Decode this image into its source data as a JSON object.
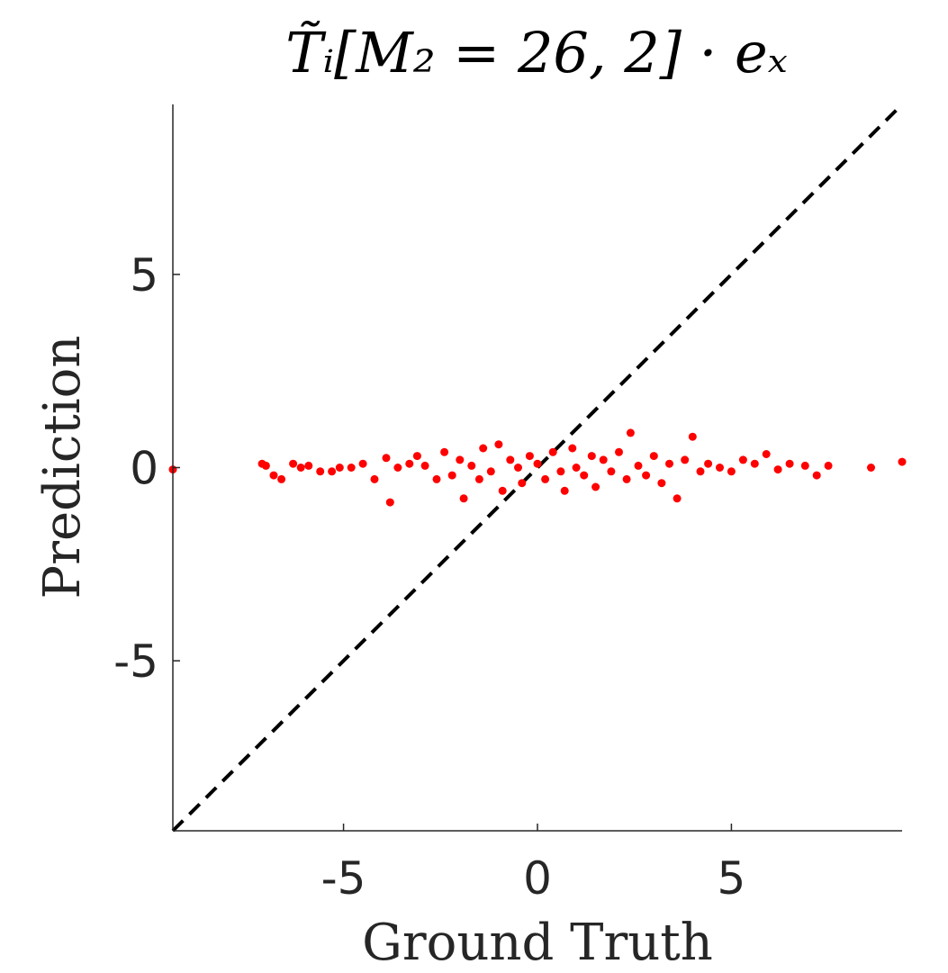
{
  "chart_data": {
    "type": "scatter",
    "title": "T̃ᵢ[M₂ = 26, 2] · eₓ",
    "xlabel": "Ground Truth",
    "ylabel": "Prediction",
    "xlim": [
      -9.4,
      9.4
    ],
    "ylim": [
      -9.4,
      9.4
    ],
    "xticks": [
      -5,
      0,
      5
    ],
    "yticks": [
      -5,
      0,
      5
    ],
    "xtick_labels": [
      "-5",
      "0",
      "5"
    ],
    "ytick_labels": [
      "-5",
      "0",
      "5"
    ],
    "grid": false,
    "reference_line": {
      "style": "dashed",
      "color": "#000000",
      "from": [
        -9.4,
        -9.4
      ],
      "to": [
        9.4,
        9.4
      ]
    },
    "series": [
      {
        "color": "#ff0000",
        "points": [
          [
            -9.4,
            -0.05
          ],
          [
            -7.1,
            0.1
          ],
          [
            -7.0,
            0.05
          ],
          [
            -6.8,
            -0.2
          ],
          [
            -6.6,
            -0.3
          ],
          [
            -6.3,
            0.1
          ],
          [
            -6.1,
            0.0
          ],
          [
            -5.9,
            0.05
          ],
          [
            -5.6,
            -0.1
          ],
          [
            -5.3,
            -0.1
          ],
          [
            -5.1,
            0.0
          ],
          [
            -4.8,
            0.0
          ],
          [
            -4.5,
            0.1
          ],
          [
            -4.2,
            -0.3
          ],
          [
            -3.9,
            0.25
          ],
          [
            -3.8,
            -0.9
          ],
          [
            -3.6,
            0.0
          ],
          [
            -3.3,
            0.1
          ],
          [
            -3.1,
            0.3
          ],
          [
            -2.9,
            0.05
          ],
          [
            -2.6,
            -0.3
          ],
          [
            -2.4,
            0.4
          ],
          [
            -2.2,
            -0.2
          ],
          [
            -2.0,
            0.2
          ],
          [
            -1.9,
            -0.8
          ],
          [
            -1.7,
            0.05
          ],
          [
            -1.5,
            -0.3
          ],
          [
            -1.4,
            0.5
          ],
          [
            -1.2,
            -0.1
          ],
          [
            -1.0,
            0.6
          ],
          [
            -0.9,
            -0.6
          ],
          [
            -0.7,
            0.2
          ],
          [
            -0.5,
            0.0
          ],
          [
            -0.4,
            -0.4
          ],
          [
            -0.2,
            0.3
          ],
          [
            0.0,
            0.1
          ],
          [
            0.2,
            -0.3
          ],
          [
            0.4,
            0.4
          ],
          [
            0.6,
            -0.1
          ],
          [
            0.7,
            -0.6
          ],
          [
            0.9,
            0.5
          ],
          [
            1.0,
            0.0
          ],
          [
            1.2,
            -0.2
          ],
          [
            1.4,
            0.3
          ],
          [
            1.5,
            -0.5
          ],
          [
            1.7,
            0.2
          ],
          [
            1.9,
            -0.1
          ],
          [
            2.1,
            0.4
          ],
          [
            2.3,
            -0.3
          ],
          [
            2.4,
            0.9
          ],
          [
            2.6,
            0.05
          ],
          [
            2.8,
            -0.2
          ],
          [
            3.0,
            0.3
          ],
          [
            3.2,
            -0.4
          ],
          [
            3.4,
            0.1
          ],
          [
            3.6,
            -0.8
          ],
          [
            3.8,
            0.2
          ],
          [
            4.0,
            0.8
          ],
          [
            4.2,
            -0.1
          ],
          [
            4.4,
            0.1
          ],
          [
            4.7,
            0.0
          ],
          [
            5.0,
            -0.1
          ],
          [
            5.3,
            0.2
          ],
          [
            5.6,
            0.1
          ],
          [
            5.9,
            0.35
          ],
          [
            6.2,
            -0.05
          ],
          [
            6.5,
            0.1
          ],
          [
            6.9,
            0.05
          ],
          [
            7.2,
            -0.2
          ],
          [
            7.5,
            0.05
          ],
          [
            8.6,
            0.0
          ],
          [
            9.4,
            0.15
          ]
        ]
      }
    ]
  }
}
